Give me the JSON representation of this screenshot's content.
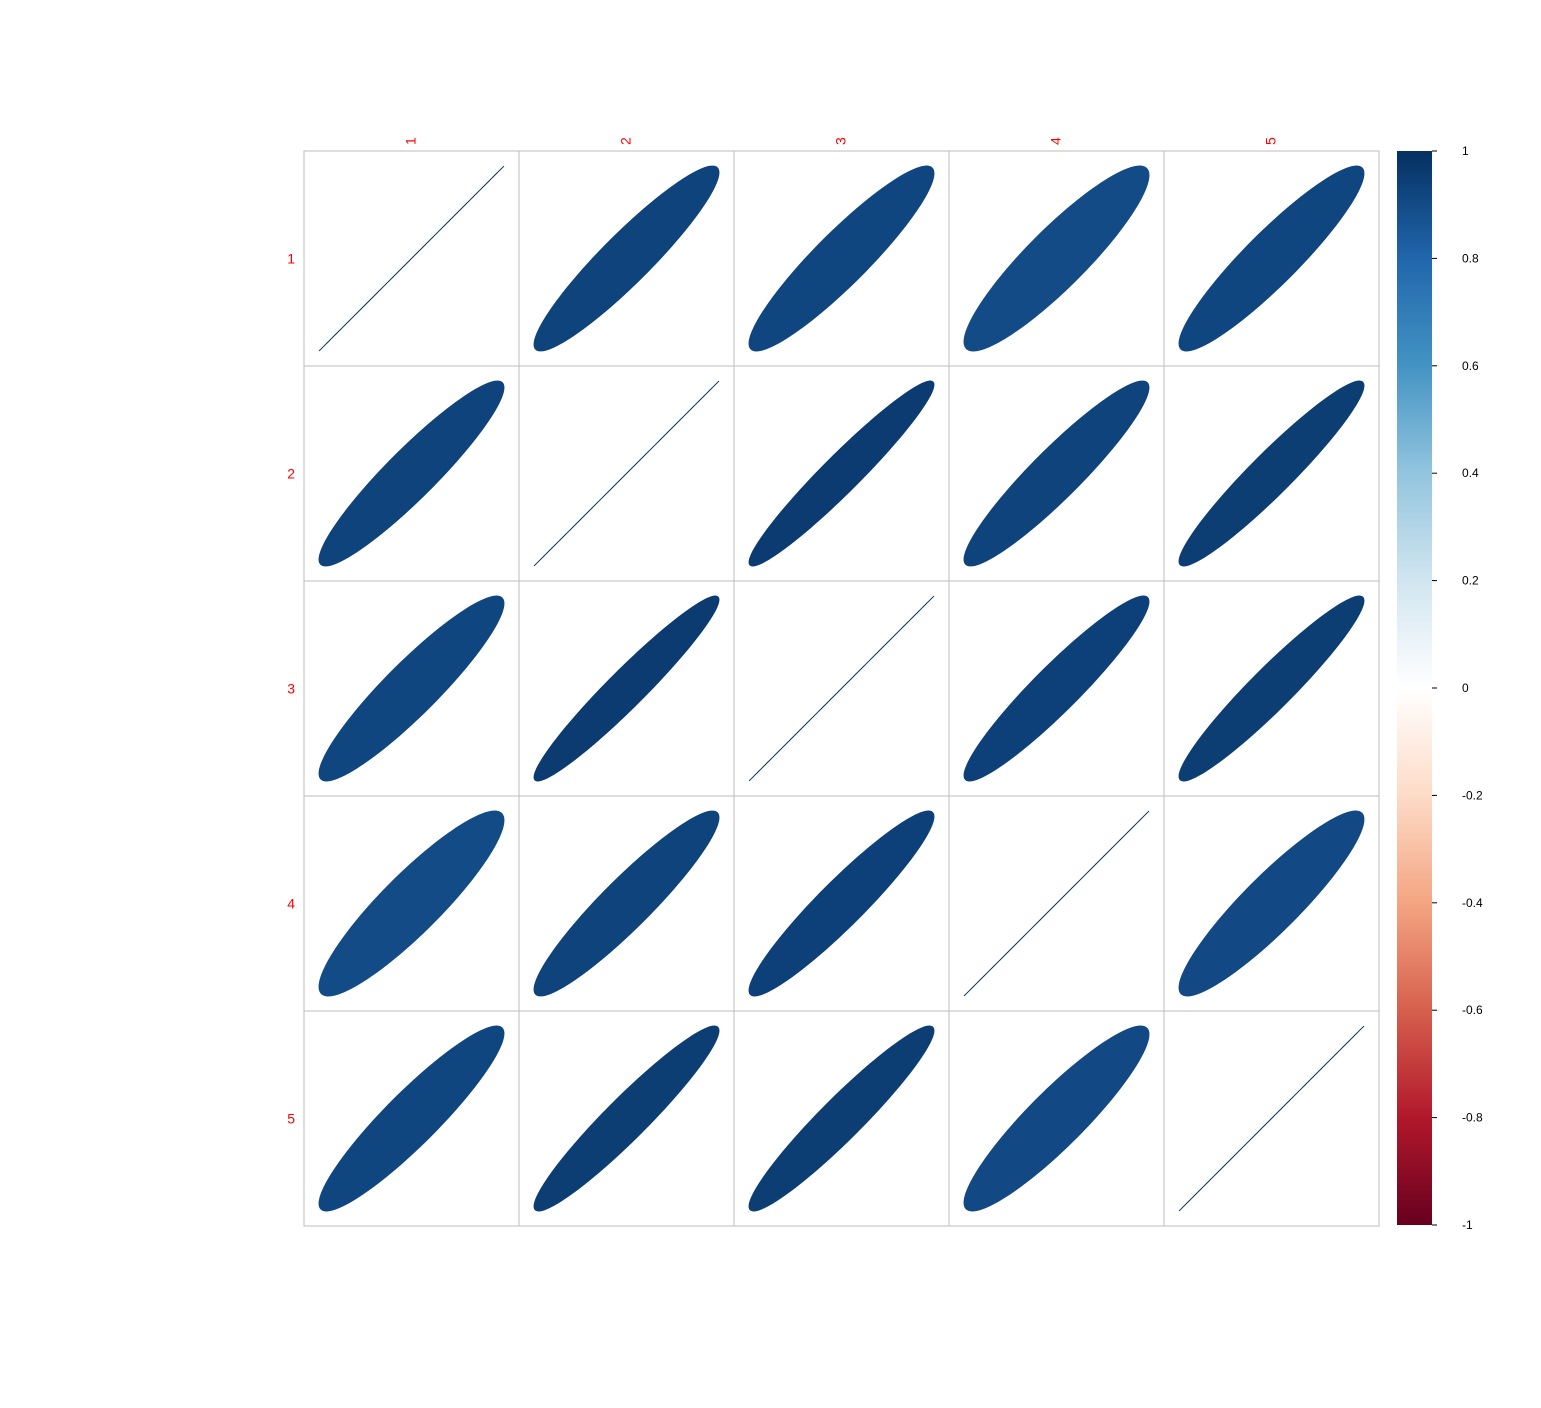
{
  "chart_data": {
    "type": "heatmap",
    "variant": "correlation-ellipse",
    "title": "",
    "row_labels": [
      "1",
      "2",
      "3",
      "4",
      "5"
    ],
    "col_labels": [
      "1",
      "2",
      "3",
      "4",
      "5"
    ],
    "label_color": "#FF0000",
    "values": [
      [
        1.0,
        0.93,
        0.92,
        0.9,
        0.92
      ],
      [
        0.93,
        1.0,
        0.96,
        0.93,
        0.95
      ],
      [
        0.92,
        0.96,
        1.0,
        0.94,
        0.95
      ],
      [
        0.9,
        0.93,
        0.94,
        1.0,
        0.91
      ],
      [
        0.92,
        0.95,
        0.95,
        0.91,
        1.0
      ]
    ],
    "color_scale": {
      "min": -1,
      "max": 1,
      "ticks": [
        "1",
        "0.8",
        "0.6",
        "0.4",
        "0.2",
        "0",
        "-0.2",
        "-0.4",
        "-0.6",
        "-0.8",
        "-1"
      ],
      "stops": [
        "#67001F",
        "#B2182B",
        "#D6604D",
        "#F4A582",
        "#FDDBC7",
        "#FFFFFF",
        "#D1E5F0",
        "#92C5DE",
        "#4393C3",
        "#2166AC",
        "#053061"
      ]
    },
    "grid": true,
    "legend": "right"
  }
}
